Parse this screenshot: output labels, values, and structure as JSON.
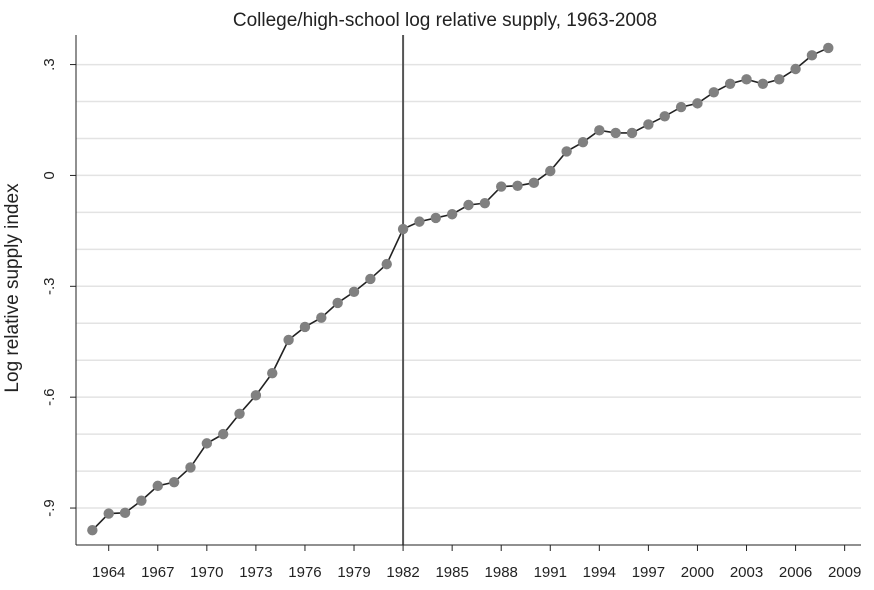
{
  "chart_data": {
    "type": "line",
    "title": "College/high-school log relative supply, 1963-2008",
    "xlabel": "",
    "ylabel": "Log relative supply index",
    "xlim": [
      1962,
      2010
    ],
    "ylim": [
      -1.0,
      0.38
    ],
    "x_ticks": [
      1964,
      1967,
      1970,
      1973,
      1976,
      1979,
      1982,
      1985,
      1988,
      1991,
      1994,
      1997,
      2000,
      2003,
      2006,
      2009
    ],
    "y_ticks": [
      {
        "value": 0.3,
        "label": ".3"
      },
      {
        "value": 0,
        "label": "0"
      },
      {
        "value": -0.3,
        "label": "-.3"
      },
      {
        "value": -0.6,
        "label": "-.6"
      },
      {
        "value": -0.9,
        "label": "-.9"
      }
    ],
    "grid": true,
    "reference_line_x": 1982,
    "colors": {
      "line": "#222222",
      "marker": "#808080",
      "reference_line": "#555555",
      "grid": "#e3e3e3"
    },
    "series": [
      {
        "x": [
          1963,
          1964,
          1965,
          1966,
          1967,
          1968,
          1969,
          1970,
          1971,
          1972,
          1973,
          1974,
          1975,
          1976,
          1977,
          1978,
          1979,
          1980,
          1981,
          1982,
          1983,
          1984,
          1985,
          1986,
          1987,
          1988,
          1989,
          1990,
          1991,
          1992,
          1993,
          1994,
          1995,
          1996,
          1997,
          1998,
          1999,
          2000,
          2001,
          2002,
          2003,
          2004,
          2005,
          2006,
          2007,
          2008
        ],
        "values": [
          -0.96,
          -0.915,
          -0.913,
          -0.88,
          -0.84,
          -0.83,
          -0.79,
          -0.725,
          -0.7,
          -0.645,
          -0.595,
          -0.535,
          -0.445,
          -0.41,
          -0.385,
          -0.345,
          -0.315,
          -0.28,
          -0.24,
          -0.145,
          -0.125,
          -0.115,
          -0.105,
          -0.08,
          -0.075,
          -0.03,
          -0.028,
          -0.02,
          0.012,
          0.065,
          0.09,
          0.122,
          0.115,
          0.115,
          0.138,
          0.16,
          0.185,
          0.195,
          0.225,
          0.248,
          0.26,
          0.248,
          0.26,
          0.288,
          0.325,
          0.345
        ]
      }
    ]
  }
}
